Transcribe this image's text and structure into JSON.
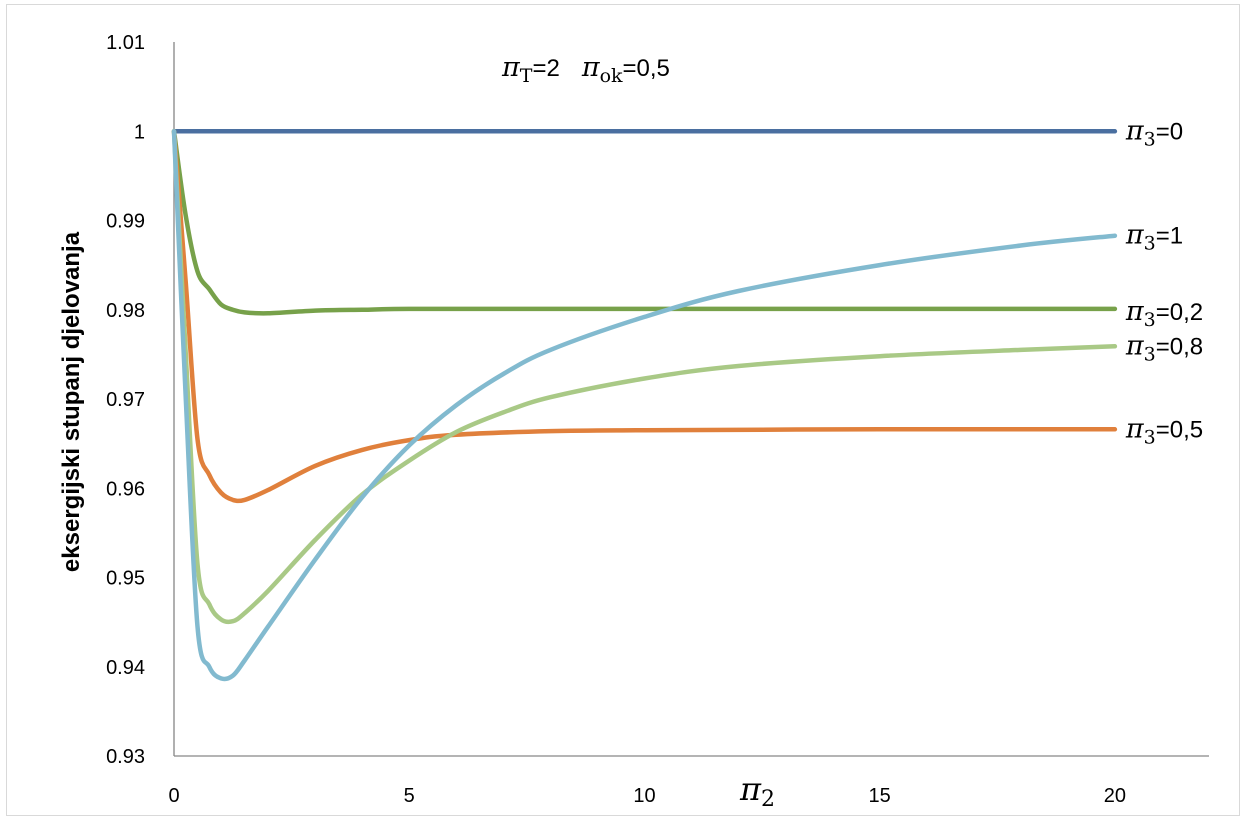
{
  "chart_data": {
    "type": "line",
    "title": "πT=2   πok=0,5",
    "title_parts": {
      "pi": "π",
      "T_sub": "T",
      "T_val": "=2",
      "ok_sub": "ok",
      "ok_val": "=0,5"
    },
    "xlabel": "π2",
    "xlabel_parts": {
      "pi": "π",
      "sub": "2"
    },
    "ylabel": "eksergijski stupanj djelovanja",
    "xlim": [
      0,
      22
    ],
    "ylim": [
      0.93,
      1.01
    ],
    "x_ticks": [
      0,
      5,
      10,
      15,
      20
    ],
    "x_tick_labels": [
      "0",
      "5",
      "10",
      "15",
      "20"
    ],
    "y_ticks": [
      0.93,
      0.94,
      0.95,
      0.96,
      0.97,
      0.98,
      0.99,
      1.0,
      1.01
    ],
    "y_tick_labels": [
      "0.93",
      "0.94",
      "0.95",
      "0.96",
      "0.97",
      "0.98",
      "0.99",
      "1",
      "1.01"
    ],
    "grid": false,
    "legend": "inline labels at right end of lines",
    "series": [
      {
        "name": "π3=0",
        "label_sub": "3",
        "label_val": "=0",
        "color": "#4a6fa0",
        "x": [
          0,
          0.5,
          1,
          1.5,
          2,
          3,
          5,
          8,
          10,
          15,
          20
        ],
        "y": [
          1.0,
          1.0,
          1.0,
          1.0,
          1.0,
          1.0,
          1.0,
          1.0,
          1.0,
          1.0,
          1.0
        ]
      },
      {
        "name": "π3=0,2",
        "label_sub": "3",
        "label_val": "=0,2",
        "color": "#77a14a",
        "x": [
          0,
          0.25,
          0.5,
          0.75,
          1,
          1.25,
          1.5,
          2,
          3,
          4,
          5,
          8,
          10,
          15,
          20
        ],
        "y": [
          1.0,
          0.9905,
          0.9843,
          0.9823,
          0.9806,
          0.98,
          0.9797,
          0.9796,
          0.9799,
          0.98,
          0.9801,
          0.9801,
          0.9801,
          0.9801,
          0.9801
        ]
      },
      {
        "name": "π3=0,5",
        "label_sub": "3",
        "label_val": "=0,5",
        "color": "#e0803c",
        "x": [
          0,
          0.25,
          0.5,
          0.75,
          1,
          1.25,
          1.5,
          2,
          3,
          4,
          5,
          6,
          8,
          10,
          15,
          20
        ],
        "y": [
          1.0,
          0.983,
          0.9655,
          0.9615,
          0.9595,
          0.9587,
          0.9587,
          0.9598,
          0.9625,
          0.9643,
          0.9654,
          0.966,
          0.9664,
          0.9665,
          0.9666,
          0.9666
        ]
      },
      {
        "name": "π3=0,8",
        "label_sub": "3",
        "label_val": "=0,8",
        "color": "#a9c986",
        "x": [
          0,
          0.25,
          0.5,
          0.75,
          1,
          1.25,
          1.5,
          2,
          3,
          4,
          5,
          6,
          7,
          8,
          10,
          12,
          15,
          18,
          20
        ],
        "y": [
          1.0,
          0.975,
          0.9515,
          0.947,
          0.9453,
          0.9451,
          0.946,
          0.9485,
          0.9542,
          0.9593,
          0.9631,
          0.9663,
          0.9685,
          0.9702,
          0.9723,
          0.9737,
          0.9748,
          0.9755,
          0.9759
        ]
      },
      {
        "name": "π3=1",
        "label_sub": "3",
        "label_val": "=1",
        "color": "#82bacf",
        "x": [
          0,
          0.25,
          0.5,
          0.75,
          1,
          1.25,
          1.5,
          2,
          3,
          4,
          5,
          6,
          7,
          8,
          10,
          12,
          15,
          18,
          20
        ],
        "y": [
          1.0,
          0.97,
          0.9445,
          0.94,
          0.9387,
          0.939,
          0.9407,
          0.9445,
          0.952,
          0.959,
          0.9648,
          0.9693,
          0.9728,
          0.9755,
          0.9792,
          0.9821,
          0.985,
          0.9872,
          0.9883
        ]
      }
    ]
  }
}
